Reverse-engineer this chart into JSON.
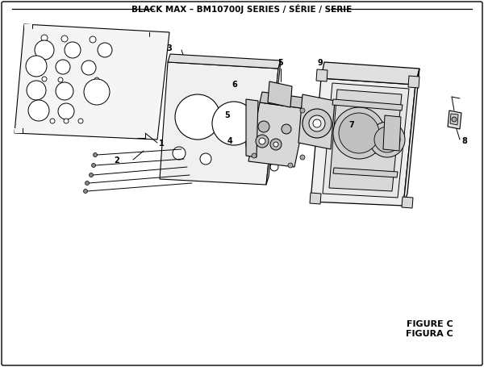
{
  "title": "BLACK MAX – BM10700J SERIES / SÉRIE / SERIE",
  "figure_label": "FIGURE C",
  "figura_label": "FIGURA C",
  "bg_color": "#ffffff",
  "line_color": "#000000",
  "title_fontsize": 7.5,
  "label_fontsize": 7,
  "figure_label_fontsize": 8
}
